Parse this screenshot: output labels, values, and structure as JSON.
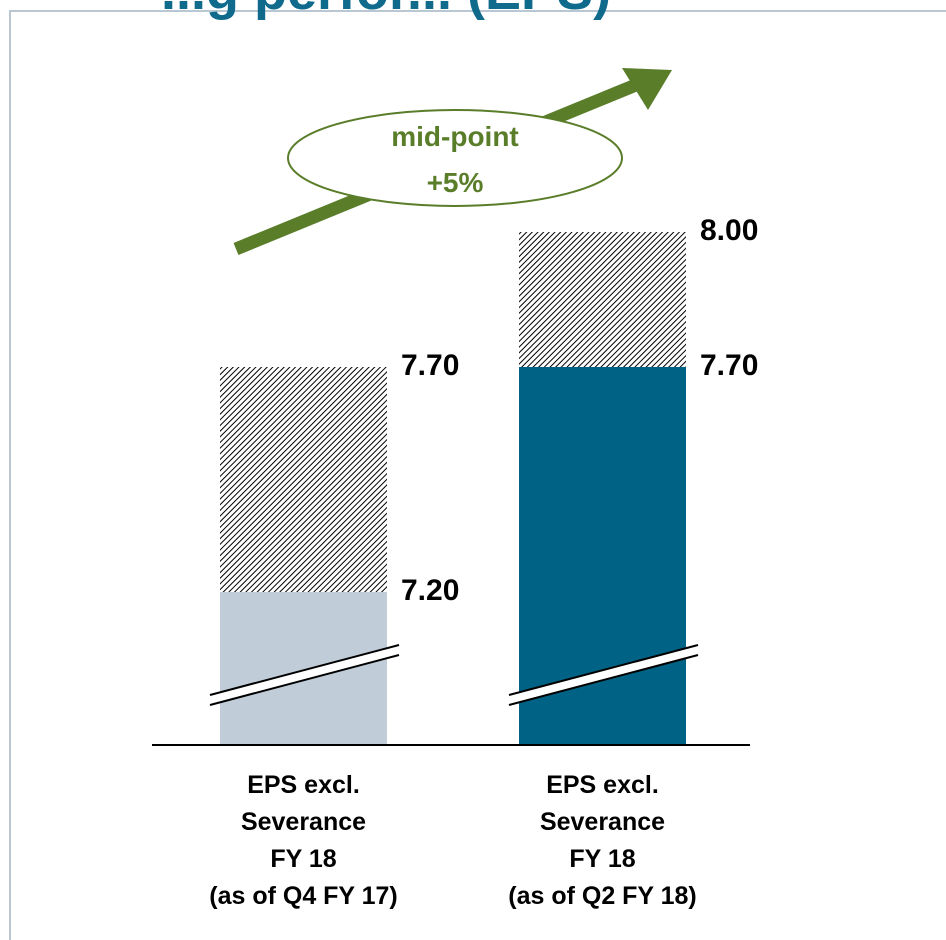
{
  "page": {
    "title_fragment": "...g perfor... (EPS)"
  },
  "colors": {
    "previous_base": "#c0cdd8",
    "current_base": "#006385",
    "hatch": "#000000",
    "arrow": "#5a7d2a",
    "label_text": "#000000",
    "panel_border": "#b9c7d3"
  },
  "chart_data": {
    "type": "bar",
    "axis_break": true,
    "categories": [
      [
        "EPS excl.",
        "Severance",
        "FY 18",
        "(as of Q4 FY 17)"
      ],
      [
        "EPS excl.",
        "Severance",
        "FY 18",
        "(as of Q2 FY 18)"
      ]
    ],
    "series": [
      {
        "values": [
          7.2,
          7.7
        ],
        "style": "solid",
        "colors": [
          "#c0cdd8",
          "#006385"
        ]
      },
      {
        "values": [
          0.5,
          0.3
        ],
        "style": "hatched"
      }
    ],
    "range_labels": [
      {
        "low": "7.20",
        "high": "7.70"
      },
      {
        "low": "7.70",
        "high": "8.00"
      }
    ],
    "annotation": {
      "line1": "mid-point",
      "line2": "+5%"
    },
    "ylim": [
      6.8,
      8.1
    ]
  }
}
